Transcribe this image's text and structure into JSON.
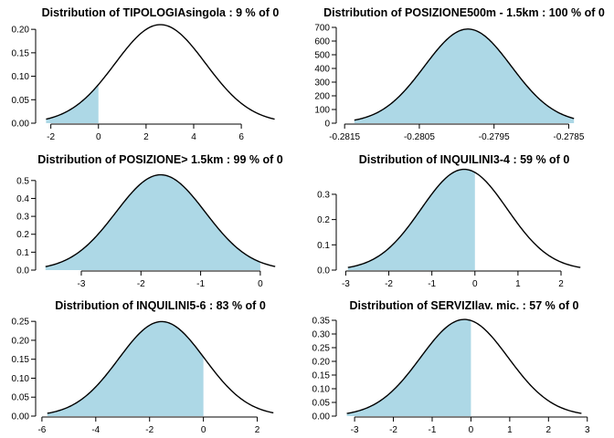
{
  "colors": {
    "shade": "#add8e6",
    "line": "#000000",
    "background": "#ffffff"
  },
  "chart_data": [
    {
      "type": "area",
      "title": "Distribution of TIPOLOGIAsingola : 9 % of 0",
      "curve": {
        "kind": "normal",
        "mean": 2.6,
        "sd": 1.9,
        "x_range": [
          -2.2,
          7.4
        ]
      },
      "shaded_region": {
        "from": -2.2,
        "to": 0
      },
      "xlim": [
        -2.6,
        7.8
      ],
      "ylim": [
        0,
        0.21
      ],
      "xticks": [
        -2,
        0,
        2,
        4,
        6
      ],
      "xtick_labels": [
        "-2",
        "0",
        "2",
        "4",
        "6"
      ],
      "yticks": [
        0,
        0.05,
        0.1,
        0.15,
        0.2
      ],
      "ytick_labels": [
        "0.00",
        "0.05",
        "0.10",
        "0.15",
        "0.20"
      ]
    },
    {
      "type": "area",
      "title": "Distribution of POSIZIONE500m - 1.5km : 100 % of 0",
      "curve": {
        "kind": "normal",
        "mean": -0.27985,
        "sd": 0.00058,
        "x_range": [
          -0.28137,
          -0.27843
        ]
      },
      "shaded_region": {
        "from": -0.28137,
        "to": -0.27843
      },
      "xlim": [
        -0.2816,
        -0.2782
      ],
      "ylim": [
        0,
        720
      ],
      "xticks": [
        -0.2815,
        -0.2805,
        -0.2795,
        -0.2785
      ],
      "xtick_labels": [
        "-0.2815",
        "-0.2805",
        "-0.2795",
        "-0.2785"
      ],
      "yticks": [
        0,
        100,
        200,
        300,
        400,
        500,
        600,
        700
      ],
      "ytick_labels": [
        "0",
        "100",
        "200",
        "300",
        "400",
        "500",
        "600",
        "700"
      ]
    },
    {
      "type": "area",
      "title": "Distribution of POSIZIONE> 1.5km : 99 % of 0",
      "curve": {
        "kind": "normal",
        "mean": -1.67,
        "sd": 0.75,
        "x_range": [
          -3.6,
          0.25
        ]
      },
      "shaded_region": {
        "from": -3.6,
        "to": 0
      },
      "xlim": [
        -3.75,
        0.4
      ],
      "ylim": [
        0,
        0.55
      ],
      "xticks": [
        -3,
        -2,
        -1,
        0
      ],
      "xtick_labels": [
        "-3",
        "-2",
        "-1",
        "0"
      ],
      "yticks": [
        0,
        0.1,
        0.2,
        0.3,
        0.4,
        0.5
      ],
      "ytick_labels": [
        "0.0",
        "0.1",
        "0.2",
        "0.3",
        "0.4",
        "0.5"
      ]
    },
    {
      "type": "area",
      "title": "Distribution of INQUILINI3-4 : 59 % of 0",
      "curve": {
        "kind": "normal",
        "mean": -0.25,
        "sd": 1.0,
        "x_range": [
          -2.95,
          2.45
        ]
      },
      "shaded_region": {
        "from": -2.95,
        "to": 0
      },
      "xlim": [
        -3.2,
        2.7
      ],
      "ylim": [
        0,
        0.39
      ],
      "xticks": [
        -3,
        -2,
        -1,
        0,
        1,
        2
      ],
      "xtick_labels": [
        "-3",
        "-2",
        "-1",
        "0",
        "1",
        "2"
      ],
      "yticks": [
        0,
        0.1,
        0.2,
        0.3
      ],
      "ytick_labels": [
        "0.0",
        "0.1",
        "0.2",
        "0.3"
      ]
    },
    {
      "type": "area",
      "title": "Distribution of INQUILINI5-6 : 83 % of 0",
      "curve": {
        "kind": "normal",
        "mean": -1.55,
        "sd": 1.6,
        "x_range": [
          -5.8,
          2.6
        ]
      },
      "shaded_region": {
        "from": -5.8,
        "to": 0
      },
      "xlim": [
        -6.2,
        3.0
      ],
      "ylim": [
        0,
        0.26
      ],
      "xticks": [
        -6,
        -4,
        -2,
        0,
        2
      ],
      "xtick_labels": [
        "-6",
        "-4",
        "-2",
        "0",
        "2"
      ],
      "yticks": [
        0,
        0.05,
        0.1,
        0.15,
        0.2,
        0.25
      ],
      "ytick_labels": [
        "0.00",
        "0.05",
        "0.10",
        "0.15",
        "0.20",
        "0.25"
      ]
    },
    {
      "type": "area",
      "title": "Distribution of SERVIZIlav. mic. : 57 % of 0",
      "curve": {
        "kind": "normal",
        "mean": -0.17,
        "sd": 1.13,
        "x_range": [
          -3.2,
          2.85
        ]
      },
      "shaded_region": {
        "from": -3.2,
        "to": 0
      },
      "xlim": [
        -3.45,
        3.1
      ],
      "ylim": [
        0,
        0.36
      ],
      "xticks": [
        -3,
        -2,
        -1,
        0,
        1,
        2,
        3
      ],
      "xtick_labels": [
        "-3",
        "-2",
        "-1",
        "0",
        "1",
        "2",
        "3"
      ],
      "yticks": [
        0,
        0.05,
        0.1,
        0.15,
        0.2,
        0.25,
        0.3,
        0.35
      ],
      "ytick_labels": [
        "0.00",
        "0.05",
        "0.10",
        "0.15",
        "0.20",
        "0.25",
        "0.30",
        "0.35"
      ]
    }
  ]
}
